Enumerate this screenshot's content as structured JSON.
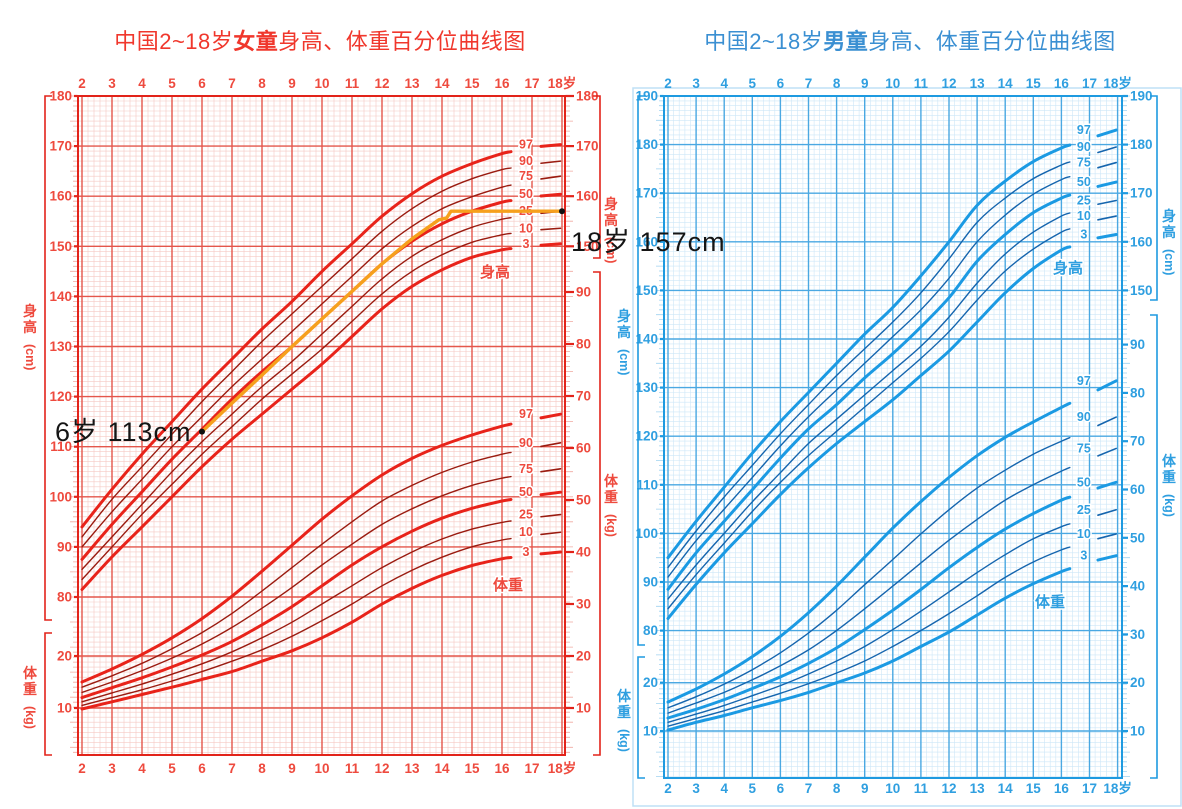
{
  "page": {
    "background": "#ffffff"
  },
  "patient_line": {
    "chart": "girls",
    "color": "#f6a01d",
    "dot_color": "#111111",
    "points": [
      [
        6,
        113
      ],
      [
        7,
        118.7
      ],
      [
        8,
        124.3
      ],
      [
        9,
        130
      ],
      [
        10,
        135.5
      ],
      [
        11,
        141
      ],
      [
        12,
        146.5
      ],
      [
        13,
        151.5
      ],
      [
        13.9,
        155.3
      ],
      [
        14.15,
        155.6
      ],
      [
        14.3,
        157
      ],
      [
        18,
        157
      ]
    ],
    "start_label": "6岁 113cm",
    "end_label": "18岁 157cm"
  },
  "chart_data": [
    {
      "id": "girls",
      "type": "line",
      "title_prefix": "中国2~18岁",
      "title_bold": "女童",
      "title_suffix": "身高、体重百分位曲线图",
      "theme": {
        "main": "#e2231a",
        "thick_curve": "#e8231a",
        "thin_curve": "#9a1b10",
        "text": "#ee4a3e",
        "grid_major": "#e4564b",
        "grid_minor": "#f5c9c3",
        "tick_minor": "#f0a9a0",
        "title": "#f0372c",
        "label_halo": "#ffffff"
      },
      "ages": [
        2,
        3,
        4,
        5,
        6,
        7,
        8,
        9,
        10,
        11,
        12,
        13,
        14,
        15,
        16,
        17,
        18
      ],
      "x_ticks": [
        "2",
        "3",
        "4",
        "5",
        "6",
        "7",
        "8",
        "9",
        "10",
        "11",
        "12",
        "13",
        "14",
        "15",
        "16",
        "17",
        "18岁"
      ],
      "height_axis_label": "身高(cm)",
      "weight_axis_label": "体重(kg)",
      "inner_height_label": "身高",
      "inner_weight_label": "体重",
      "height_ticks": [
        180,
        170,
        160,
        150,
        140,
        130,
        120,
        110,
        100,
        90,
        80
      ],
      "right_height_ticks": [
        180,
        170,
        160,
        150
      ],
      "weight_ticks_left": [
        20,
        10
      ],
      "weight_ticks_right": [
        90,
        80,
        70,
        60,
        50,
        40,
        30,
        20,
        10
      ],
      "percentile_labels": [
        "97",
        "90",
        "75",
        "50",
        "25",
        "10",
        "3"
      ],
      "height_series": [
        {
          "percentile": "97",
          "thick": true,
          "values": [
            94,
            101.5,
            108.5,
            115,
            121.5,
            127.5,
            133.5,
            139,
            145,
            150.5,
            156,
            160.5,
            164,
            166.5,
            168.5,
            169.8,
            170.3
          ]
        },
        {
          "percentile": "90",
          "thick": false,
          "values": [
            92,
            99.5,
            106,
            112.5,
            119,
            125,
            131,
            136.5,
            142,
            147.5,
            153,
            157.5,
            161,
            163.5,
            165.3,
            166.4,
            167
          ]
        },
        {
          "percentile": "75",
          "thick": false,
          "values": [
            90,
            97,
            103.5,
            110,
            116,
            122,
            127.5,
            133,
            138.5,
            144,
            149.5,
            154,
            157.5,
            159.9,
            161.8,
            163.2,
            164
          ]
        },
        {
          "percentile": "50",
          "thick": true,
          "values": [
            87.5,
            94.5,
            101,
            107.5,
            113.5,
            119.5,
            125,
            130,
            135.5,
            141,
            146.5,
            151,
            154.5,
            157,
            158.8,
            159.9,
            160.4
          ]
        },
        {
          "percentile": "25",
          "thick": false,
          "values": [
            85.5,
            92,
            98.5,
            105,
            111,
            116.5,
            122,
            127,
            132.5,
            138,
            143.5,
            148,
            151.3,
            153.8,
            155.4,
            156.4,
            157
          ]
        },
        {
          "percentile": "10",
          "thick": false,
          "values": [
            83.5,
            90,
            96.5,
            102.5,
            108.5,
            114,
            119.5,
            124.5,
            129.5,
            135,
            140.5,
            145,
            148.3,
            150.8,
            152.3,
            153.2,
            153.6
          ]
        },
        {
          "percentile": "3",
          "thick": true,
          "values": [
            81.5,
            88,
            94,
            100,
            106,
            111.5,
            116.5,
            121.5,
            126.5,
            132,
            137.5,
            142,
            145.3,
            147.8,
            149.3,
            150.1,
            150.5
          ]
        }
      ],
      "weight_series": [
        {
          "percentile": "97",
          "thick": true,
          "values": [
            15,
            17.5,
            20.3,
            23.5,
            27.2,
            31.5,
            36.3,
            41.3,
            46.3,
            50.8,
            54.8,
            58,
            60.5,
            62.5,
            64.2,
            65.5,
            66.5
          ]
        },
        {
          "percentile": "90",
          "thick": false,
          "values": [
            14,
            16.2,
            18.6,
            21.4,
            24.5,
            28.2,
            32.5,
            37,
            41.5,
            45.8,
            49.8,
            52.8,
            55.3,
            57.3,
            58.8,
            60,
            61
          ]
        },
        {
          "percentile": "75",
          "thick": false,
          "values": [
            13,
            15,
            17.2,
            19.6,
            22.3,
            25.5,
            29.2,
            33.2,
            37.5,
            41.5,
            45.3,
            48.3,
            50.8,
            52.8,
            54.2,
            55.2,
            56
          ]
        },
        {
          "percentile": "50",
          "thick": true,
          "values": [
            12,
            13.9,
            15.8,
            17.9,
            20.2,
            22.8,
            26,
            29.5,
            33.5,
            37.5,
            41,
            44,
            46.5,
            48.4,
            49.8,
            50.8,
            51.5
          ]
        },
        {
          "percentile": "25",
          "thick": false,
          "values": [
            11.2,
            12.9,
            14.6,
            16.5,
            18.5,
            20.8,
            23.5,
            26.5,
            30,
            33.5,
            37,
            40,
            42.5,
            44.4,
            45.7,
            46.6,
            47.2
          ]
        },
        {
          "percentile": "10",
          "thick": false,
          "values": [
            10.5,
            12,
            13.5,
            15.2,
            17,
            19,
            21.2,
            23.8,
            26.8,
            30,
            33.5,
            36.5,
            39,
            41,
            42.3,
            43.2,
            43.8
          ]
        },
        {
          "percentile": "3",
          "thick": true,
          "values": [
            9.8,
            11.2,
            12.6,
            14,
            15.5,
            17,
            19,
            21,
            23.5,
            26.5,
            30,
            33,
            35.5,
            37.4,
            38.7,
            39.5,
            40
          ]
        }
      ]
    },
    {
      "id": "boys",
      "type": "line",
      "title_prefix": "中国2~18岁",
      "title_bold": "男童",
      "title_suffix": "身高、体重百分位曲线图",
      "theme": {
        "main": "#1e9ae0",
        "thick_curve": "#1b9ae3",
        "thin_curve": "#1565ae",
        "text": "#2f9fe0",
        "grid_major": "#4aa8e2",
        "grid_minor": "#cde7f8",
        "tick_minor": "#9fd2f0",
        "title": "#3a8fd2",
        "label_halo": "#ffffff",
        "panel_border": "#bfe0f5"
      },
      "ages": [
        2,
        3,
        4,
        5,
        6,
        7,
        8,
        9,
        10,
        11,
        12,
        13,
        14,
        15,
        16,
        17,
        18
      ],
      "x_ticks": [
        "2",
        "3",
        "4",
        "5",
        "6",
        "7",
        "8",
        "9",
        "10",
        "11",
        "12",
        "13",
        "14",
        "15",
        "16",
        "17",
        "18岁"
      ],
      "height_axis_label": "身高(cm)",
      "weight_axis_label": "体重(kg)",
      "inner_height_label": "身高",
      "inner_weight_label": "体重",
      "height_ticks": [
        190,
        180,
        170,
        160,
        150,
        140,
        130,
        120,
        110,
        100,
        90,
        80
      ],
      "right_height_ticks": [
        190,
        180,
        170,
        160,
        150
      ],
      "weight_ticks_left": [
        20,
        10
      ],
      "weight_ticks_right": [
        90,
        80,
        70,
        60,
        50,
        40,
        30,
        20,
        10
      ],
      "percentile_labels": [
        "97",
        "90",
        "75",
        "50",
        "25",
        "10",
        "3"
      ],
      "height_series": [
        {
          "percentile": "97",
          "thick": true,
          "values": [
            95,
            102.5,
            109.5,
            116.5,
            123,
            129,
            135,
            141,
            146.5,
            153,
            160,
            167.5,
            172.5,
            176.5,
            179.3,
            181.3,
            183
          ]
        },
        {
          "percentile": "90",
          "thick": false,
          "values": [
            93,
            100.5,
            107.5,
            114,
            120.5,
            126.5,
            132.5,
            138,
            143.5,
            149.5,
            156.5,
            164,
            169,
            173,
            175.8,
            177.9,
            179.5
          ]
        },
        {
          "percentile": "75",
          "thick": false,
          "values": [
            91,
            98.5,
            105,
            111.5,
            118,
            124,
            129.5,
            135,
            140.5,
            146,
            152.5,
            160,
            165.5,
            169.8,
            172.8,
            174.8,
            176.3
          ]
        },
        {
          "percentile": "50",
          "thick": true,
          "values": [
            88.5,
            96,
            102.5,
            109,
            115.5,
            121.5,
            126.5,
            132,
            137,
            142.5,
            148.5,
            156,
            161.5,
            166,
            169,
            171,
            172.3
          ]
        },
        {
          "percentile": "25",
          "thick": false,
          "values": [
            86.5,
            93.5,
            100,
            106.5,
            112.5,
            118.5,
            123.5,
            128.5,
            133.5,
            138.5,
            144.5,
            151.5,
            157.5,
            162,
            165.3,
            167.4,
            168.5
          ]
        },
        {
          "percentile": "10",
          "thick": false,
          "values": [
            84.5,
            91.5,
            98,
            104.5,
            110.5,
            116,
            121,
            126,
            131,
            136,
            141.5,
            148,
            154,
            158.5,
            162,
            164.2,
            165.3
          ]
        },
        {
          "percentile": "3",
          "thick": true,
          "values": [
            82.5,
            89.5,
            96,
            102,
            108,
            113.5,
            118.5,
            123,
            127.5,
            132.5,
            137.5,
            143.5,
            149.5,
            154.5,
            158.3,
            160.5,
            161.5
          ]
        }
      ],
      "weight_series": [
        {
          "percentile": "97",
          "thick": true,
          "values": [
            16,
            18.7,
            21.8,
            25.4,
            29.6,
            34.5,
            40,
            46,
            52,
            57.5,
            62.5,
            67,
            70.8,
            74,
            77,
            79.8,
            82.5
          ]
        },
        {
          "percentile": "90",
          "thick": false,
          "values": [
            14.8,
            17.1,
            19.7,
            22.7,
            26.2,
            30.3,
            35,
            40.3,
            45.5,
            50.8,
            55.8,
            60.3,
            64,
            67.3,
            70,
            72.5,
            75
          ]
        },
        {
          "percentile": "75",
          "thick": false,
          "values": [
            13.7,
            15.8,
            18,
            20.6,
            23.5,
            26.8,
            30.8,
            35.3,
            40,
            44.8,
            49.5,
            53.8,
            57.8,
            61,
            63.8,
            66.3,
            68.5
          ]
        },
        {
          "percentile": "50",
          "thick": true,
          "values": [
            12.7,
            14.5,
            16.5,
            18.8,
            21.2,
            24,
            27.2,
            31,
            35,
            39.3,
            43.8,
            48,
            51.8,
            55,
            57.8,
            59.8,
            61.5
          ]
        },
        {
          "percentile": "25",
          "thick": false,
          "values": [
            11.8,
            13.5,
            15.3,
            17.3,
            19.4,
            21.8,
            24.5,
            27.5,
            31,
            34.8,
            38.8,
            42.8,
            46.5,
            49.8,
            52.3,
            54.2,
            55.8
          ]
        },
        {
          "percentile": "10",
          "thick": false,
          "values": [
            11,
            12.6,
            14.2,
            16,
            17.8,
            19.8,
            22,
            24.5,
            27.5,
            30.8,
            34.3,
            38,
            41.8,
            45,
            47.5,
            49.4,
            50.8
          ]
        },
        {
          "percentile": "3",
          "thick": true,
          "values": [
            10.2,
            11.8,
            13.2,
            14.8,
            16.3,
            18,
            20,
            22,
            24.5,
            27.5,
            30.5,
            34,
            37.5,
            40.5,
            43,
            45,
            46.3
          ]
        }
      ]
    }
  ]
}
